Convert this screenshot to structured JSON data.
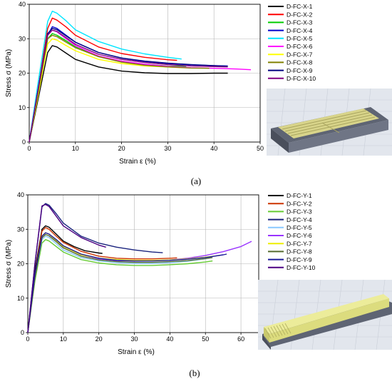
{
  "panels": [
    {
      "caption": "(a)",
      "chart_data": {
        "type": "line",
        "xlabel": "Strain ε (%)",
        "ylabel": "Stress σ (MPa)",
        "xlim": [
          0,
          50
        ],
        "ylim": [
          0,
          40
        ],
        "xticks": [
          "0",
          "10",
          "20",
          "30",
          "40",
          "50"
        ],
        "yticks": [
          "0",
          "10",
          "20",
          "30",
          "40"
        ],
        "grid": true,
        "legend_position": "right",
        "series": [
          {
            "name": "D-FC-X-1",
            "color": "#000000",
            "x": [
              0,
              2,
              4,
              5,
              6,
              8,
              10,
              15,
              20,
              25,
              30,
              35,
              40,
              43
            ],
            "y": [
              0,
              13,
              26,
              28,
              27.6,
              25.8,
              24,
              21.8,
              20.6,
              20.1,
              19.9,
              19.9,
              20,
              20
            ]
          },
          {
            "name": "D-FC-X-2",
            "color": "#ff0000",
            "x": [
              0,
              2,
              4,
              5,
              6,
              8,
              10,
              15,
              20,
              25,
              30,
              32
            ],
            "y": [
              0,
              16,
              33,
              36,
              35.4,
              33.4,
              31,
              27.6,
              25.7,
              24.6,
              23.9,
              23.7
            ]
          },
          {
            "name": "D-FC-X-3",
            "color": "#00cc00",
            "x": [
              0,
              2,
              4,
              5,
              6,
              8,
              10,
              15,
              20,
              25,
              30,
              34
            ],
            "y": [
              0,
              15,
              30,
              31.5,
              31,
              29.4,
              27.6,
              24.8,
              23.4,
              22.6,
              22.1,
              22
            ]
          },
          {
            "name": "D-FC-X-4",
            "color": "#0000cc",
            "x": [
              0,
              2,
              4,
              5,
              6,
              8,
              10,
              15,
              20,
              25,
              30,
              35,
              40,
              43
            ],
            "y": [
              0,
              16,
              31,
              33.5,
              33,
              31,
              29,
              26,
              24.4,
              23.4,
              22.8,
              22.4,
              22.2,
              22.1
            ]
          },
          {
            "name": "D-FC-X-5",
            "color": "#00e5ff",
            "x": [
              0,
              2,
              4,
              5,
              6,
              8,
              10,
              15,
              20,
              25,
              30,
              33
            ],
            "y": [
              0,
              18,
              35,
              38,
              37.4,
              35.2,
              32.6,
              29.2,
              27,
              25.6,
              24.6,
              24.1
            ]
          },
          {
            "name": "D-FC-X-6",
            "color": "#ff00ff",
            "x": [
              0,
              2,
              4,
              5,
              6,
              8,
              10,
              15,
              20,
              25,
              30,
              35,
              40,
              45,
              48
            ],
            "y": [
              0,
              15,
              31,
              32.5,
              32,
              30,
              28,
              25,
              23.5,
              22.6,
              22,
              21.6,
              21.4,
              21.2,
              21
            ]
          },
          {
            "name": "D-FC-X-7",
            "color": "#ffff00",
            "x": [
              0,
              2,
              4,
              5,
              6,
              8,
              10,
              15,
              20,
              25,
              30,
              33
            ],
            "y": [
              0,
              14,
              28.5,
              30,
              29.6,
              28,
              26.5,
              24,
              22.8,
              22.1,
              21.8,
              21.6
            ]
          },
          {
            "name": "D-FC-X-8",
            "color": "#808000",
            "x": [
              0,
              2,
              4,
              5,
              6,
              8,
              10,
              15,
              20,
              25,
              30,
              35,
              39
            ],
            "y": [
              0,
              15,
              30,
              31,
              30.6,
              29,
              27.4,
              24.8,
              23.2,
              22.3,
              21.8,
              21.5,
              21.4
            ]
          },
          {
            "name": "D-FC-X-9",
            "color": "#000080",
            "x": [
              0,
              2,
              4,
              5,
              6,
              8,
              10,
              15,
              20,
              25,
              30,
              35,
              40,
              43
            ],
            "y": [
              0,
              16,
              31.5,
              33,
              32.6,
              30.8,
              29,
              26,
              24.4,
              23.5,
              22.9,
              22.5,
              22.2,
              22
            ]
          },
          {
            "name": "D-FC-X-10",
            "color": "#800080",
            "x": [
              0,
              2,
              4,
              5,
              6,
              8,
              10,
              15,
              20,
              25,
              30,
              35,
              40,
              43
            ],
            "y": [
              0,
              16,
              31,
              32.5,
              32.1,
              30.3,
              28.4,
              25.5,
              24,
              23.1,
              22.5,
              22.1,
              21.9,
              21.8
            ]
          }
        ]
      }
    },
    {
      "caption": "(b)",
      "chart_data": {
        "type": "line",
        "xlabel": "Strain ε (%)",
        "ylabel": "Stress σ (MPa)",
        "xlim": [
          0,
          65
        ],
        "ylim": [
          0,
          40
        ],
        "xticks": [
          "0",
          "10",
          "20",
          "30",
          "40",
          "50",
          "60"
        ],
        "yticks": [
          "0",
          "10",
          "20",
          "30",
          "40"
        ],
        "grid": true,
        "legend_position": "right",
        "series": [
          {
            "name": "D-FC-Y-1",
            "color": "#000000",
            "x": [
              0,
              2,
              4,
              5,
              6,
              8,
              10,
              13,
              16,
              20,
              21
            ],
            "y": [
              0,
              18,
              30,
              31,
              30.6,
              28.6,
              26.6,
              25,
              23.8,
              23.1,
              23
            ]
          },
          {
            "name": "D-FC-Y-2",
            "color": "#cc3300",
            "x": [
              0,
              2,
              4,
              5,
              6,
              8,
              10,
              15,
              20,
              25,
              30,
              35,
              40,
              42
            ],
            "y": [
              0,
              17,
              29.5,
              30.5,
              30,
              28,
              26.2,
              23.6,
              22.2,
              21.6,
              21.4,
              21.4,
              21.6,
              21.7
            ]
          },
          {
            "name": "D-FC-Y-3",
            "color": "#66cc33",
            "x": [
              0,
              2,
              4,
              5,
              6,
              8,
              10,
              15,
              20,
              25,
              30,
              35,
              40,
              45,
              50,
              52
            ],
            "y": [
              0,
              15,
              26,
              27,
              26.6,
              25,
              23.4,
              21.2,
              20.2,
              19.7,
              19.5,
              19.5,
              19.7,
              20,
              20.5,
              20.8
            ]
          },
          {
            "name": "D-FC-Y-4",
            "color": "#1a237e",
            "x": [
              0,
              2,
              4,
              5,
              6,
              8,
              10,
              15,
              20,
              25,
              30,
              35,
              38
            ],
            "y": [
              0,
              20,
              36.5,
              37.5,
              37,
              34.5,
              31.8,
              28,
              26,
              24.8,
              24,
              23.4,
              23.2
            ]
          },
          {
            "name": "D-FC-Y-5",
            "color": "#88c8ff",
            "x": [
              0,
              2,
              4,
              5,
              6,
              8,
              10,
              15,
              20,
              25,
              30,
              35,
              40,
              45,
              50,
              52
            ],
            "y": [
              0,
              16,
              27,
              28,
              27.6,
              25.8,
              24,
              21.8,
              20.8,
              20.3,
              20.1,
              20.1,
              20.3,
              20.7,
              21.4,
              21.8
            ]
          },
          {
            "name": "D-FC-Y-6",
            "color": "#9933ff",
            "x": [
              0,
              2,
              4,
              5,
              6,
              8,
              10,
              15,
              20,
              25,
              30,
              35,
              40,
              45,
              50,
              55,
              60,
              63
            ],
            "y": [
              0,
              16,
              28,
              29,
              28.6,
              26.8,
              25,
              22.6,
              21.4,
              20.9,
              20.8,
              20.9,
              21.1,
              21.6,
              22.4,
              23.5,
              25,
              26.5
            ]
          },
          {
            "name": "D-FC-Y-7",
            "color": "#eeee00",
            "x": [
              0,
              2,
              4,
              5,
              6,
              8,
              10,
              15,
              20,
              25,
              30,
              35,
              40,
              45,
              50,
              54
            ],
            "y": [
              0,
              16,
              28,
              29,
              28.6,
              26.8,
              25,
              22.6,
              21.6,
              21.2,
              21,
              21,
              21.1,
              21.4,
              21.9,
              22.4
            ]
          },
          {
            "name": "D-FC-Y-8",
            "color": "#556b2f",
            "x": [
              0,
              2,
              4,
              5,
              6,
              8,
              10,
              15,
              20,
              25,
              30,
              35,
              40,
              45,
              50,
              52
            ],
            "y": [
              0,
              16,
              27.5,
              28.5,
              28.1,
              26.4,
              24.6,
              22.2,
              21.1,
              20.6,
              20.4,
              20.4,
              20.6,
              20.9,
              21.5,
              21.8
            ]
          },
          {
            "name": "D-FC-Y-9",
            "color": "#1a1a99",
            "x": [
              0,
              2,
              4,
              5,
              6,
              8,
              10,
              15,
              20,
              25,
              30,
              35,
              40,
              45,
              50,
              55,
              56
            ],
            "y": [
              0,
              17,
              28,
              29,
              28.6,
              27,
              25.2,
              22.8,
              21.6,
              21,
              20.8,
              20.8,
              21,
              21.3,
              21.8,
              22.6,
              22.8
            ]
          },
          {
            "name": "D-FC-Y-10",
            "color": "#4b0082",
            "x": [
              0,
              2,
              4,
              5,
              6,
              8,
              10,
              15,
              20,
              22
            ],
            "y": [
              0,
              20,
              36.8,
              37.2,
              36.6,
              33.8,
              31,
              27.6,
              25.4,
              24.8
            ]
          }
        ]
      }
    }
  ]
}
